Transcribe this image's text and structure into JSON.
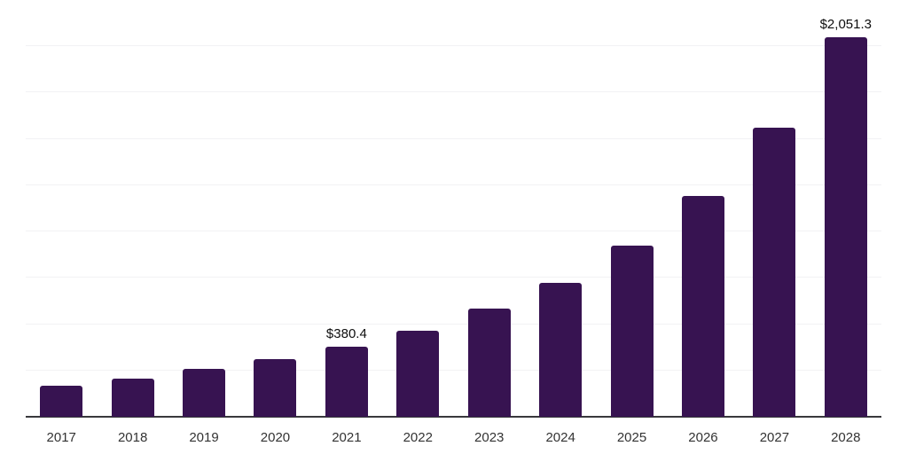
{
  "chart_data": {
    "type": "bar",
    "title": "",
    "xlabel": "",
    "ylabel": "",
    "categories": [
      "2017",
      "2018",
      "2019",
      "2020",
      "2021",
      "2022",
      "2023",
      "2024",
      "2025",
      "2026",
      "2027",
      "2028"
    ],
    "values": [
      168,
      205,
      259,
      312,
      380.4,
      464,
      583,
      723,
      922,
      1191,
      1559,
      2051.3
    ],
    "value_labels": [
      "",
      "",
      "",
      "",
      "$380.4",
      "",
      "",
      "",
      "",
      "",
      "",
      "$2,051.3"
    ],
    "ylim": [
      0,
      2250
    ],
    "grid_step": 250,
    "grid": "horizontal-only",
    "legend": "none",
    "y_axis_tick_labels": "none",
    "colors": {
      "bar": "#371351",
      "gridline": "#f2f2f4",
      "axis_line": "#38383c",
      "x_tick_label": "#333333",
      "value_label": "#0d0d0d",
      "background": "#ffffff"
    }
  }
}
